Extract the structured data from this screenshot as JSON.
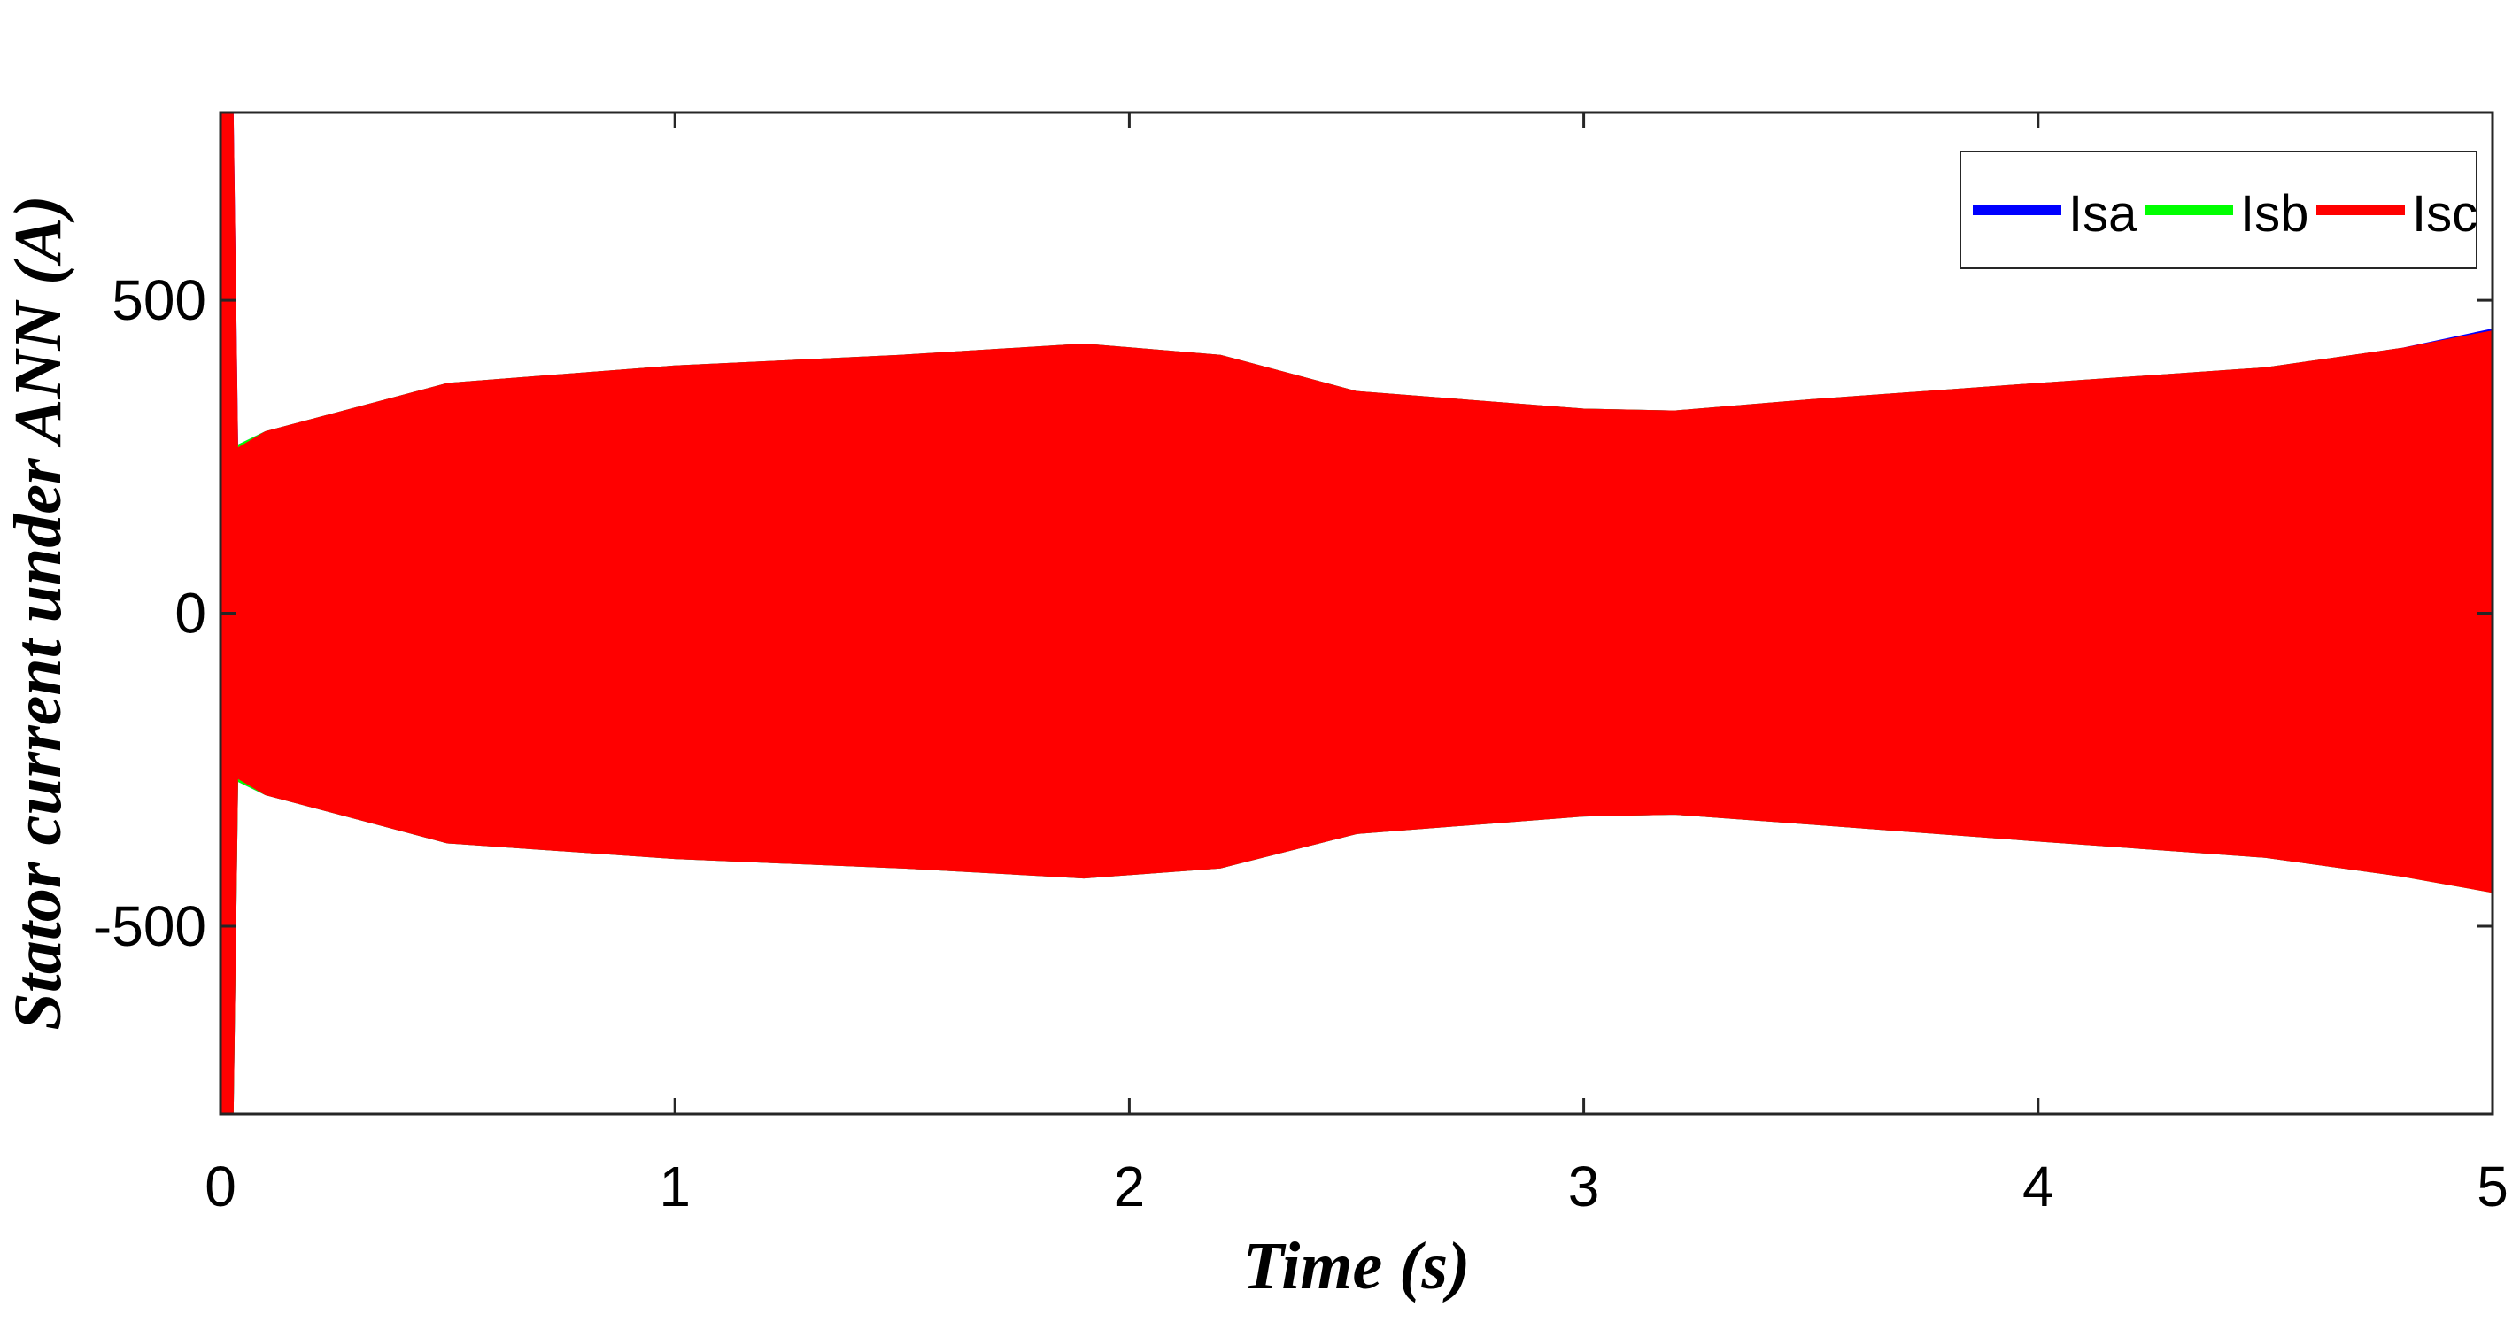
{
  "chart_data": {
    "type": "envelope",
    "xlabel": "Time (s)",
    "ylabel": "Stator current under ANN (A)",
    "x": [
      0,
      0.005,
      0.025,
      0.035,
      0.1,
      0.5,
      1,
      1.5,
      1.9,
      2.2,
      2.5,
      3,
      3.2,
      3.5,
      4,
      4.5,
      4.8,
      5
    ],
    "series": [
      {
        "name": "Isa",
        "color": "#0000ff",
        "upper": [
          250,
          800,
          800,
          265,
          288,
          365,
          393,
          410,
          428,
          410,
          352,
          324,
          321,
          339,
          365,
          390,
          421,
          452
        ],
        "lower": [
          -250,
          -800,
          -800,
          -265,
          -288,
          -365,
          -390,
          -405,
          -421,
          -405,
          -350,
          -322,
          -319,
          -335,
          -362,
          -388,
          -418,
          -60
        ]
      },
      {
        "name": "Isb",
        "color": "#00ff00",
        "upper": [
          250,
          370,
          370,
          265,
          288,
          365,
          393,
          410,
          428,
          410,
          352,
          324,
          321,
          339,
          365,
          390,
          421,
          350
        ],
        "lower": [
          -250,
          -800,
          -800,
          -265,
          -288,
          -365,
          -390,
          -405,
          -421,
          -405,
          -350,
          -322,
          -319,
          -335,
          -362,
          -388,
          -418,
          -444
        ]
      },
      {
        "name": "Isc",
        "color": "#ff0000",
        "upper": [
          250,
          800,
          800,
          260,
          288,
          365,
          393,
          410,
          428,
          410,
          352,
          324,
          321,
          339,
          365,
          390,
          421,
          449
        ],
        "lower": [
          -250,
          -800,
          -800,
          -260,
          -288,
          -365,
          -390,
          -405,
          -421,
          -405,
          -350,
          -322,
          -319,
          -335,
          -362,
          -388,
          -418,
          -444
        ]
      }
    ],
    "xlim": [
      0,
      5
    ],
    "xticks": [
      0,
      1,
      2,
      3,
      4,
      5
    ],
    "ylim": [
      -800,
      800
    ],
    "yticks": [
      -500,
      0,
      500
    ],
    "grid": false,
    "legend": "upper right"
  }
}
